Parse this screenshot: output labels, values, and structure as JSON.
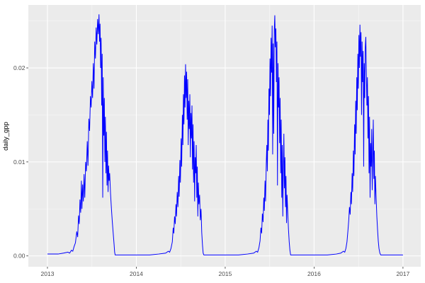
{
  "figure": {
    "background": "#FFFFFF",
    "panel_bg": "#EBEBEB",
    "grid_major_color": "#FFFFFF",
    "grid_minor_color": "#F7F7F7",
    "tick_text_color": "#4D4D4D",
    "tick_mark_color": "#333333",
    "line_color": "#0000FF"
  },
  "chart_data": {
    "type": "line",
    "title": "",
    "xlabel": "",
    "ylabel": "daily_gpp",
    "grid": true,
    "legend": "none",
    "xlim": [
      2012.785,
      2017.2
    ],
    "ylim": [
      -0.00115,
      0.0267
    ],
    "x_ticks": [
      {
        "value": 2013,
        "label": "2013"
      },
      {
        "value": 2014,
        "label": "2014"
      },
      {
        "value": 2015,
        "label": "2015"
      },
      {
        "value": 2016,
        "label": "2016"
      },
      {
        "value": 2017,
        "label": "2017"
      }
    ],
    "y_ticks": [
      {
        "value": 0.0,
        "label": "0.00"
      },
      {
        "value": 0.01,
        "label": "0.01"
      },
      {
        "value": 0.02,
        "label": "0.02"
      }
    ],
    "x_minor": [
      2013.5,
      2014.5,
      2015.5,
      2016.5
    ],
    "y_minor": [
      0.005,
      0.015,
      0.025
    ],
    "series": [
      {
        "name": "daily_gpp",
        "color": "#0000FF",
        "points": [
          [
            2013.0,
            0.0002
          ],
          [
            2013.06,
            0.0002
          ],
          [
            2013.12,
            0.0002
          ],
          [
            2013.18,
            0.0003
          ],
          [
            2013.23,
            0.0004
          ],
          [
            2013.25,
            0.0003
          ],
          [
            2013.27,
            0.0006
          ],
          [
            2013.285,
            0.0005
          ],
          [
            2013.3,
            0.001
          ],
          [
            2013.315,
            0.0014
          ],
          [
            2013.33,
            0.0026
          ],
          [
            2013.34,
            0.002
          ],
          [
            2013.35,
            0.0043
          ],
          [
            2013.358,
            0.0034
          ],
          [
            2013.366,
            0.006
          ],
          [
            2013.374,
            0.0046
          ],
          [
            2013.382,
            0.008
          ],
          [
            2013.388,
            0.005
          ],
          [
            2013.396,
            0.0076
          ],
          [
            2013.404,
            0.0058
          ],
          [
            2013.412,
            0.0087
          ],
          [
            2013.42,
            0.0062
          ],
          [
            2013.43,
            0.01
          ],
          [
            2013.438,
            0.009
          ],
          [
            2013.448,
            0.0122
          ],
          [
            2013.456,
            0.0096
          ],
          [
            2013.466,
            0.0146
          ],
          [
            2013.474,
            0.0133
          ],
          [
            2013.484,
            0.017
          ],
          [
            2013.492,
            0.0158
          ],
          [
            2013.5,
            0.0186
          ],
          [
            2013.508,
            0.0168
          ],
          [
            2013.516,
            0.0205
          ],
          [
            2013.524,
            0.0178
          ],
          [
            2013.532,
            0.0228
          ],
          [
            2013.54,
            0.021
          ],
          [
            2013.548,
            0.0243
          ],
          [
            2013.556,
            0.0225
          ],
          [
            2013.564,
            0.0252
          ],
          [
            2013.572,
            0.0236
          ],
          [
            2013.58,
            0.0257
          ],
          [
            2013.586,
            0.0228
          ],
          [
            2013.592,
            0.0247
          ],
          [
            2013.598,
            0.02
          ],
          [
            2013.604,
            0.0232
          ],
          [
            2013.61,
            0.016
          ],
          [
            2013.616,
            0.0215
          ],
          [
            2013.622,
            0.0062
          ],
          [
            2013.628,
            0.019
          ],
          [
            2013.634,
            0.0128
          ],
          [
            2013.64,
            0.0168
          ],
          [
            2013.646,
            0.01
          ],
          [
            2013.652,
            0.0148
          ],
          [
            2013.658,
            0.0088
          ],
          [
            2013.664,
            0.0132
          ],
          [
            2013.67,
            0.0075
          ],
          [
            2013.676,
            0.0112
          ],
          [
            2013.682,
            0.0068
          ],
          [
            2013.688,
            0.0096
          ],
          [
            2013.694,
            0.008
          ],
          [
            2013.7,
            0.0088
          ],
          [
            2013.71,
            0.0066
          ],
          [
            2013.72,
            0.005
          ],
          [
            2013.73,
            0.0036
          ],
          [
            2013.74,
            0.0024
          ],
          [
            2013.75,
            0.0012
          ],
          [
            2013.756,
            0.0004
          ],
          [
            2013.762,
            0.0001
          ],
          [
            2013.85,
            0.0001
          ],
          [
            2013.95,
            0.0001
          ],
          [
            2014.05,
            0.0001
          ],
          [
            2014.15,
            0.0001
          ],
          [
            2014.25,
            0.0002
          ],
          [
            2014.33,
            0.0003
          ],
          [
            2014.36,
            0.0005
          ],
          [
            2014.375,
            0.0004
          ],
          [
            2014.39,
            0.0008
          ],
          [
            2014.405,
            0.0015
          ],
          [
            2014.415,
            0.003
          ],
          [
            2014.422,
            0.0024
          ],
          [
            2014.43,
            0.0042
          ],
          [
            2014.438,
            0.0034
          ],
          [
            2014.446,
            0.0055
          ],
          [
            2014.452,
            0.0042
          ],
          [
            2014.46,
            0.0068
          ],
          [
            2014.468,
            0.0052
          ],
          [
            2014.476,
            0.0085
          ],
          [
            2014.482,
            0.0063
          ],
          [
            2014.49,
            0.0102
          ],
          [
            2014.496,
            0.0078
          ],
          [
            2014.504,
            0.0125
          ],
          [
            2014.51,
            0.0095
          ],
          [
            2014.518,
            0.015
          ],
          [
            2014.524,
            0.0118
          ],
          [
            2014.53,
            0.0172
          ],
          [
            2014.536,
            0.014
          ],
          [
            2014.542,
            0.0192
          ],
          [
            2014.548,
            0.0158
          ],
          [
            2014.554,
            0.0204
          ],
          [
            2014.56,
            0.0168
          ],
          [
            2014.566,
            0.0196
          ],
          [
            2014.572,
            0.0145
          ],
          [
            2014.578,
            0.0188
          ],
          [
            2014.584,
            0.0118
          ],
          [
            2014.59,
            0.0165
          ],
          [
            2014.596,
            0.0135
          ],
          [
            2014.602,
            0.0172
          ],
          [
            2014.608,
            0.0105
          ],
          [
            2014.614,
            0.0152
          ],
          [
            2014.62,
            0.0125
          ],
          [
            2014.626,
            0.016
          ],
          [
            2014.632,
            0.0092
          ],
          [
            2014.638,
            0.014
          ],
          [
            2014.644,
            0.0078
          ],
          [
            2014.65,
            0.0122
          ],
          [
            2014.656,
            0.0058
          ],
          [
            2014.662,
            0.0105
          ],
          [
            2014.668,
            0.0088
          ],
          [
            2014.674,
            0.0118
          ],
          [
            2014.68,
            0.0062
          ],
          [
            2014.686,
            0.0095
          ],
          [
            2014.692,
            0.0042
          ],
          [
            2014.698,
            0.0078
          ],
          [
            2014.704,
            0.0055
          ],
          [
            2014.712,
            0.0065
          ],
          [
            2014.72,
            0.0038
          ],
          [
            2014.728,
            0.005
          ],
          [
            2014.736,
            0.0025
          ],
          [
            2014.744,
            0.0012
          ],
          [
            2014.752,
            0.0003
          ],
          [
            2014.76,
            0.0001
          ],
          [
            2014.85,
            0.0001
          ],
          [
            2014.95,
            0.0001
          ],
          [
            2015.05,
            0.0001
          ],
          [
            2015.15,
            0.0001
          ],
          [
            2015.25,
            0.0002
          ],
          [
            2015.32,
            0.0003
          ],
          [
            2015.35,
            0.0005
          ],
          [
            2015.365,
            0.0004
          ],
          [
            2015.38,
            0.0009
          ],
          [
            2015.392,
            0.0016
          ],
          [
            2015.402,
            0.003
          ],
          [
            2015.41,
            0.0024
          ],
          [
            2015.418,
            0.0045
          ],
          [
            2015.426,
            0.0036
          ],
          [
            2015.434,
            0.0062
          ],
          [
            2015.44,
            0.0048
          ],
          [
            2015.448,
            0.008
          ],
          [
            2015.454,
            0.0058
          ],
          [
            2015.462,
            0.0098
          ],
          [
            2015.468,
            0.0118
          ],
          [
            2015.474,
            0.009
          ],
          [
            2015.48,
            0.0145
          ],
          [
            2015.486,
            0.0112
          ],
          [
            2015.492,
            0.0178
          ],
          [
            2015.498,
            0.015
          ],
          [
            2015.504,
            0.021
          ],
          [
            2015.51,
            0.017
          ],
          [
            2015.516,
            0.0232
          ],
          [
            2015.522,
            0.0195
          ],
          [
            2015.528,
            0.0245
          ],
          [
            2015.534,
            0.0108
          ],
          [
            2015.54,
            0.0226
          ],
          [
            2015.546,
            0.013
          ],
          [
            2015.552,
            0.024
          ],
          [
            2015.558,
            0.0256
          ],
          [
            2015.564,
            0.0222
          ],
          [
            2015.57,
            0.0242
          ],
          [
            2015.576,
            0.0185
          ],
          [
            2015.582,
            0.0228
          ],
          [
            2015.588,
            0.0075
          ],
          [
            2015.594,
            0.0205
          ],
          [
            2015.6,
            0.0158
          ],
          [
            2015.606,
            0.019
          ],
          [
            2015.612,
            0.012
          ],
          [
            2015.618,
            0.0168
          ],
          [
            2015.624,
            0.0088
          ],
          [
            2015.63,
            0.0145
          ],
          [
            2015.636,
            0.0062
          ],
          [
            2015.642,
            0.0118
          ],
          [
            2015.648,
            0.0042
          ],
          [
            2015.654,
            0.0095
          ],
          [
            2015.66,
            0.013
          ],
          [
            2015.666,
            0.0072
          ],
          [
            2015.672,
            0.0105
          ],
          [
            2015.678,
            0.0052
          ],
          [
            2015.684,
            0.0085
          ],
          [
            2015.69,
            0.0035
          ],
          [
            2015.696,
            0.0065
          ],
          [
            2015.704,
            0.0045
          ],
          [
            2015.712,
            0.0028
          ],
          [
            2015.72,
            0.0015
          ],
          [
            2015.728,
            0.0006
          ],
          [
            2015.736,
            0.0001
          ],
          [
            2015.85,
            0.0001
          ],
          [
            2015.95,
            0.0001
          ],
          [
            2016.05,
            0.0001
          ],
          [
            2016.15,
            0.0001
          ],
          [
            2016.25,
            0.0002
          ],
          [
            2016.3,
            0.0003
          ],
          [
            2016.33,
            0.0005
          ],
          [
            2016.345,
            0.0004
          ],
          [
            2016.358,
            0.0008
          ],
          [
            2016.37,
            0.0015
          ],
          [
            2016.38,
            0.0026
          ],
          [
            2016.39,
            0.0038
          ],
          [
            2016.398,
            0.0052
          ],
          [
            2016.406,
            0.0044
          ],
          [
            2016.414,
            0.0068
          ],
          [
            2016.42,
            0.0055
          ],
          [
            2016.428,
            0.0088
          ],
          [
            2016.434,
            0.0068
          ],
          [
            2016.442,
            0.0112
          ],
          [
            2016.448,
            0.0085
          ],
          [
            2016.456,
            0.014
          ],
          [
            2016.462,
            0.0108
          ],
          [
            2016.468,
            0.0165
          ],
          [
            2016.474,
            0.013
          ],
          [
            2016.48,
            0.019
          ],
          [
            2016.486,
            0.0155
          ],
          [
            2016.492,
            0.0215
          ],
          [
            2016.498,
            0.0178
          ],
          [
            2016.504,
            0.0235
          ],
          [
            2016.51,
            0.02
          ],
          [
            2016.516,
            0.0246
          ],
          [
            2016.522,
            0.0212
          ],
          [
            2016.528,
            0.0238
          ],
          [
            2016.534,
            0.015
          ],
          [
            2016.54,
            0.0228
          ],
          [
            2016.546,
            0.0185
          ],
          [
            2016.552,
            0.0218
          ],
          [
            2016.558,
            0.0095
          ],
          [
            2016.564,
            0.0205
          ],
          [
            2016.57,
            0.0168
          ],
          [
            2016.576,
            0.0222
          ],
          [
            2016.582,
            0.0233
          ],
          [
            2016.588,
            0.0195
          ],
          [
            2016.594,
            0.016
          ],
          [
            2016.6,
            0.019
          ],
          [
            2016.606,
            0.0125
          ],
          [
            2016.612,
            0.017
          ],
          [
            2016.618,
            0.0088
          ],
          [
            2016.624,
            0.0148
          ],
          [
            2016.63,
            0.0062
          ],
          [
            2016.636,
            0.012
          ],
          [
            2016.642,
            0.0095
          ],
          [
            2016.648,
            0.0135
          ],
          [
            2016.654,
            0.007
          ],
          [
            2016.66,
            0.0108
          ],
          [
            2016.666,
            0.0145
          ],
          [
            2016.672,
            0.0082
          ],
          [
            2016.678,
            0.0112
          ],
          [
            2016.684,
            0.0055
          ],
          [
            2016.69,
            0.0085
          ],
          [
            2016.698,
            0.0062
          ],
          [
            2016.706,
            0.0042
          ],
          [
            2016.714,
            0.0028
          ],
          [
            2016.722,
            0.0016
          ],
          [
            2016.73,
            0.0008
          ],
          [
            2016.74,
            0.0003
          ],
          [
            2016.75,
            0.0001
          ],
          [
            2016.85,
            0.0001
          ],
          [
            2016.95,
            0.0001
          ],
          [
            2017.0,
            0.0001
          ]
        ]
      }
    ]
  }
}
